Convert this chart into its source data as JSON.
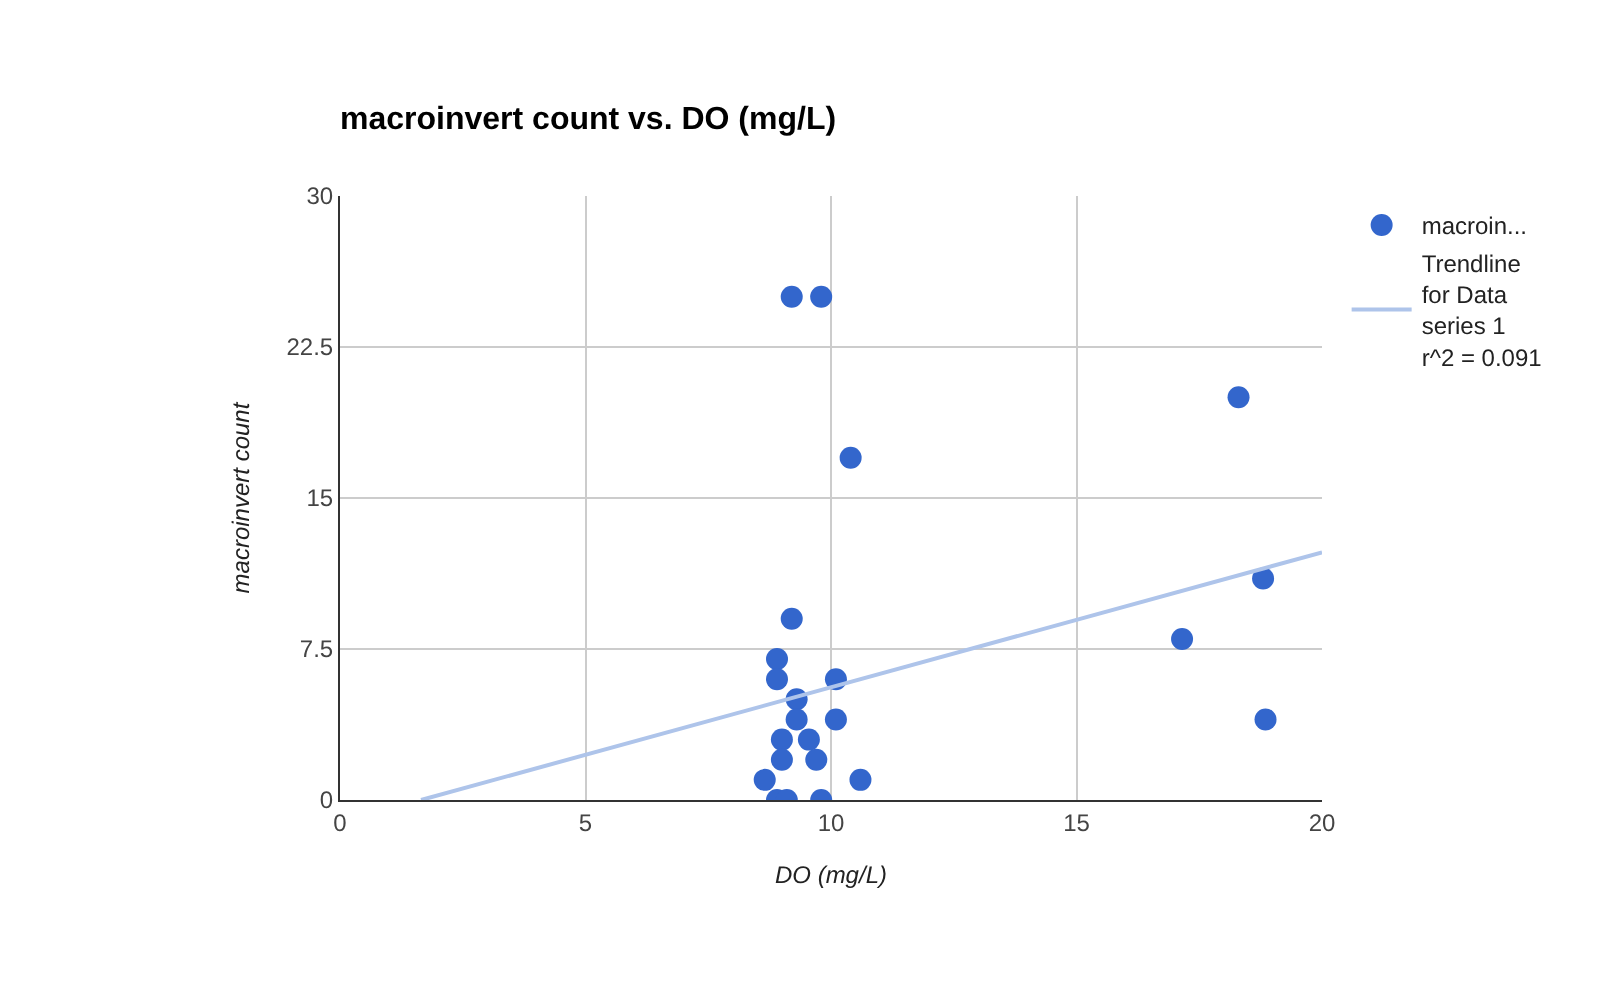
{
  "chart_data": {
    "type": "scatter",
    "title": "macroinvert count vs. DO (mg/L)",
    "xlabel": "DO (mg/L)",
    "ylabel": "macroinvert count",
    "xlim": [
      0,
      20
    ],
    "xticks": [
      0,
      5,
      10,
      15,
      20
    ],
    "ylim": [
      0,
      30
    ],
    "yticks": [
      0,
      7.5,
      15,
      22.5,
      30
    ],
    "grid": true,
    "legend": "top right",
    "series": [
      {
        "name": "macroin...",
        "color": "#3366cc",
        "marker": "circle",
        "x": [
          9.2,
          8.9,
          8.9,
          10.1,
          9.3,
          9.3,
          10.1,
          9.0,
          9.55,
          9.0,
          9.7,
          8.65,
          10.6,
          8.9,
          9.1,
          9.8,
          9.2,
          9.8,
          10.4,
          18.3,
          18.8,
          17.15,
          18.85
        ],
        "values": [
          9,
          7,
          6,
          6,
          5,
          4,
          4,
          3,
          3,
          2,
          2,
          1,
          1,
          0,
          0,
          0,
          25,
          25,
          17,
          20,
          11,
          8,
          4
        ]
      },
      {
        "name": "Trendline for Data series 1 r^2 = 0.091",
        "color": "#aec4ea",
        "type": "line",
        "marker": "none",
        "x": [
          1.65,
          20
        ],
        "values": [
          0,
          12.3
        ]
      }
    ]
  }
}
